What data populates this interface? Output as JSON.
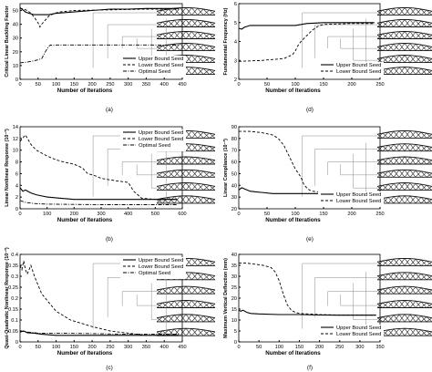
{
  "chart_data": [
    {
      "panel": "a",
      "caption": "(a)",
      "type": "line",
      "ylabel": "Critical Linear Buckling Factor",
      "xlabel": "Number of Iterations",
      "xlim": [
        0,
        450
      ],
      "xticks": [
        0,
        50,
        100,
        150,
        200,
        250,
        300,
        350,
        400,
        450
      ],
      "ylim": [
        0,
        55
      ],
      "yticks": [
        0,
        10,
        20,
        30,
        40,
        50
      ],
      "legend": [
        "Upper Bound Seed",
        "Lower Bound Seed",
        "Optimal Seed"
      ],
      "legend_position": "bottom-right",
      "series": [
        {
          "name": "Upper Bound Seed",
          "style": "solid",
          "x": [
            0,
            5,
            10,
            15,
            25,
            40,
            60,
            80,
            100,
            150,
            200,
            250,
            300,
            350,
            400,
            440
          ],
          "y": [
            52,
            51,
            50,
            49,
            48,
            47,
            47,
            47,
            48,
            49,
            50,
            51,
            51,
            51.5,
            51.5,
            51.5
          ]
        },
        {
          "name": "Lower Bound Seed",
          "style": "dashed",
          "x": [
            0,
            10,
            20,
            30,
            40,
            50,
            55,
            60,
            70,
            80,
            95,
            110,
            150,
            250,
            350,
            440
          ],
          "y": [
            51.5,
            51,
            50,
            48,
            45,
            41,
            38,
            40,
            43,
            46,
            48,
            49,
            50,
            50.5,
            51,
            51
          ]
        },
        {
          "name": "Optimal Seed",
          "style": "dashdot",
          "x": [
            0,
            20,
            40,
            60,
            70,
            80,
            85,
            90,
            100,
            150,
            200,
            250,
            300,
            350,
            440
          ],
          "y": [
            12,
            12.5,
            13.5,
            15,
            20,
            24,
            25,
            24.5,
            25,
            25,
            25,
            25,
            25,
            25,
            25
          ]
        }
      ]
    },
    {
      "panel": "d",
      "caption": "(d)",
      "type": "line",
      "ylabel": "Fundamental Frequency (Hz)",
      "xlabel": "Number of Iterations",
      "xlim": [
        0,
        250
      ],
      "xticks": [
        0,
        50,
        100,
        150,
        200,
        250
      ],
      "ylim": [
        2,
        6
      ],
      "yticks": [
        2,
        3,
        4,
        5,
        6
      ],
      "legend": [
        "Upper Bound Seed",
        "Lower Bound Seed"
      ],
      "legend_position": "bottom-right",
      "series": [
        {
          "name": "Upper Bound Seed",
          "style": "solid",
          "x": [
            0,
            5,
            10,
            20,
            40,
            60,
            100,
            120,
            150,
            200,
            240
          ],
          "y": [
            4.7,
            4.65,
            4.75,
            4.85,
            4.85,
            4.85,
            4.85,
            4.95,
            5.0,
            5.0,
            5.0
          ]
        },
        {
          "name": "Lower Bound Seed",
          "style": "dashed",
          "x": [
            0,
            40,
            80,
            95,
            100,
            105,
            110,
            120,
            130,
            140,
            150,
            200,
            240
          ],
          "y": [
            2.95,
            3.0,
            3.1,
            3.3,
            3.5,
            3.8,
            4.0,
            4.3,
            4.6,
            4.8,
            4.9,
            4.95,
            4.95
          ]
        }
      ]
    },
    {
      "panel": "b",
      "caption": "(b)",
      "type": "line",
      "ylabel": "Linear Nonlinear Response (10⁻³)",
      "xlabel": "Number of Iterations",
      "xlim": [
        0,
        600
      ],
      "xticks": [
        0,
        100,
        200,
        300,
        400,
        500,
        600
      ],
      "ylim": [
        0,
        14
      ],
      "yticks": [
        0,
        2,
        4,
        6,
        8,
        10,
        12,
        14
      ],
      "legend": [
        "Upper Bound Seed",
        "Lower Bound Seed",
        "Optimal Seed"
      ],
      "legend_position": "top-right",
      "series": [
        {
          "name": "Upper Bound Seed",
          "style": "solid",
          "x": [
            0,
            10,
            20,
            40,
            60,
            80,
            100,
            150,
            200,
            300,
            400,
            500,
            580
          ],
          "y": [
            3.6,
            3.0,
            3.2,
            2.7,
            2.4,
            2.2,
            2.0,
            1.8,
            1.6,
            1.6,
            1.6,
            1.6,
            1.6
          ]
        },
        {
          "name": "Lower Bound Seed",
          "style": "dashed",
          "x": [
            0,
            20,
            40,
            60,
            80,
            100,
            130,
            160,
            200,
            230,
            250,
            280,
            300,
            350,
            400,
            420,
            450,
            500,
            580
          ],
          "y": [
            11.5,
            12.6,
            11.0,
            10.0,
            9.5,
            9.0,
            8.4,
            8.0,
            7.6,
            7.0,
            6.0,
            5.6,
            5.2,
            4.8,
            4.5,
            3.0,
            1.8,
            1.6,
            1.6
          ]
        },
        {
          "name": "Optimal Seed",
          "style": "dashdot",
          "x": [
            0,
            20,
            50,
            100,
            200,
            300,
            400,
            500,
            580
          ],
          "y": [
            1.4,
            1.1,
            0.9,
            0.8,
            0.75,
            0.7,
            0.7,
            0.7,
            0.7
          ]
        }
      ]
    },
    {
      "panel": "e",
      "caption": "(e)",
      "type": "line",
      "ylabel": "Linear Compliance (10⁻³)",
      "xlabel": "Number of Iterations",
      "xlim": [
        0,
        250
      ],
      "xticks": [
        0,
        50,
        100,
        150,
        200,
        250
      ],
      "ylim": [
        20,
        90
      ],
      "yticks": [
        20,
        30,
        40,
        50,
        60,
        70,
        80,
        90
      ],
      "legend": [
        "Upper Bound Seed",
        "Lower Bound Seed"
      ],
      "legend_position": "bottom-right",
      "series": [
        {
          "name": "Upper Bound Seed",
          "style": "solid",
          "x": [
            0,
            5,
            10,
            20,
            30,
            40,
            60,
            100,
            150,
            200,
            240
          ],
          "y": [
            36,
            38,
            37,
            35,
            34.5,
            34,
            33,
            33,
            33,
            32.5,
            32.5
          ]
        },
        {
          "name": "Lower Bound Seed",
          "style": "dashed",
          "x": [
            0,
            20,
            40,
            60,
            70,
            80,
            90,
            100,
            110,
            115,
            120,
            125,
            130,
            150,
            200,
            240
          ],
          "y": [
            86,
            86,
            85,
            83,
            80,
            74,
            64,
            54,
            47,
            41,
            38,
            36,
            35,
            34,
            33.5,
            33.5
          ]
        }
      ]
    },
    {
      "panel": "c",
      "caption": "(c)",
      "type": "line",
      "ylabel": "Quasi-Quadratic Nonlinear Response (10⁻³)",
      "xlabel": "Number of Iterations",
      "xlim": [
        0,
        450
      ],
      "xticks": [
        0,
        50,
        100,
        150,
        200,
        250,
        300,
        350,
        400,
        450
      ],
      "ylim": [
        0,
        0.4
      ],
      "yticks": [
        0,
        0.05,
        0.1,
        0.15,
        0.2,
        0.25,
        0.3,
        0.35,
        0.4
      ],
      "legend": [
        "Upper Bound Seed",
        "Lower Bound Seed",
        "Optimal Seed"
      ],
      "legend_position": "top-right",
      "series": [
        {
          "name": "Upper Bound Seed",
          "style": "solid",
          "x": [
            0,
            10,
            20,
            40,
            60,
            100,
            150,
            200,
            300,
            400,
            440
          ],
          "y": [
            0.045,
            0.05,
            0.042,
            0.04,
            0.035,
            0.03,
            0.03,
            0.03,
            0.03,
            0.03,
            0.03
          ]
        },
        {
          "name": "Lower Bound Seed",
          "style": "dashed",
          "x": [
            0,
            5,
            10,
            15,
            20,
            25,
            30,
            40,
            60,
            80,
            100,
            120,
            140,
            160,
            200,
            250,
            300,
            350,
            400,
            440
          ],
          "y": [
            0.35,
            0.33,
            0.37,
            0.33,
            0.31,
            0.33,
            0.35,
            0.3,
            0.22,
            0.18,
            0.14,
            0.12,
            0.1,
            0.09,
            0.07,
            0.05,
            0.04,
            0.03,
            0.03,
            0.03
          ]
        },
        {
          "name": "Optimal Seed",
          "style": "dashdot",
          "x": [
            0,
            20,
            50,
            100,
            200,
            300,
            400,
            440
          ],
          "y": [
            0.05,
            0.045,
            0.04,
            0.04,
            0.038,
            0.035,
            0.035,
            0.035
          ]
        }
      ]
    },
    {
      "panel": "f",
      "caption": "(f)",
      "type": "line",
      "ylabel": "Maximum Vertical Deflection (mm)",
      "xlabel": "Number of Iterations",
      "xlim": [
        0,
        350
      ],
      "xticks": [
        0,
        50,
        100,
        150,
        200,
        250,
        300,
        350
      ],
      "ylim": [
        0,
        40
      ],
      "yticks": [
        0,
        5,
        10,
        15,
        20,
        25,
        30,
        35,
        40
      ],
      "legend": [
        "Upper Bound Seed",
        "Lower Bound Seed"
      ],
      "legend_position": "bottom-right",
      "series": [
        {
          "name": "Upper Bound Seed",
          "style": "solid",
          "x": [
            0,
            5,
            10,
            20,
            30,
            50,
            100,
            150,
            200,
            250,
            300,
            340
          ],
          "y": [
            14.5,
            14.0,
            14.5,
            13.5,
            13.0,
            12.8,
            12.5,
            12.5,
            12.3,
            12.2,
            12.2,
            12.2
          ]
        },
        {
          "name": "Lower Bound Seed",
          "style": "dashed",
          "x": [
            0,
            20,
            40,
            60,
            80,
            90,
            100,
            110,
            120,
            130,
            140,
            150,
            200,
            250,
            300,
            340
          ],
          "y": [
            36,
            36,
            35.5,
            35,
            34,
            32,
            28,
            22,
            17,
            14.5,
            13.5,
            13,
            12.5,
            12.3,
            12.3,
            12.3
          ]
        }
      ]
    }
  ]
}
